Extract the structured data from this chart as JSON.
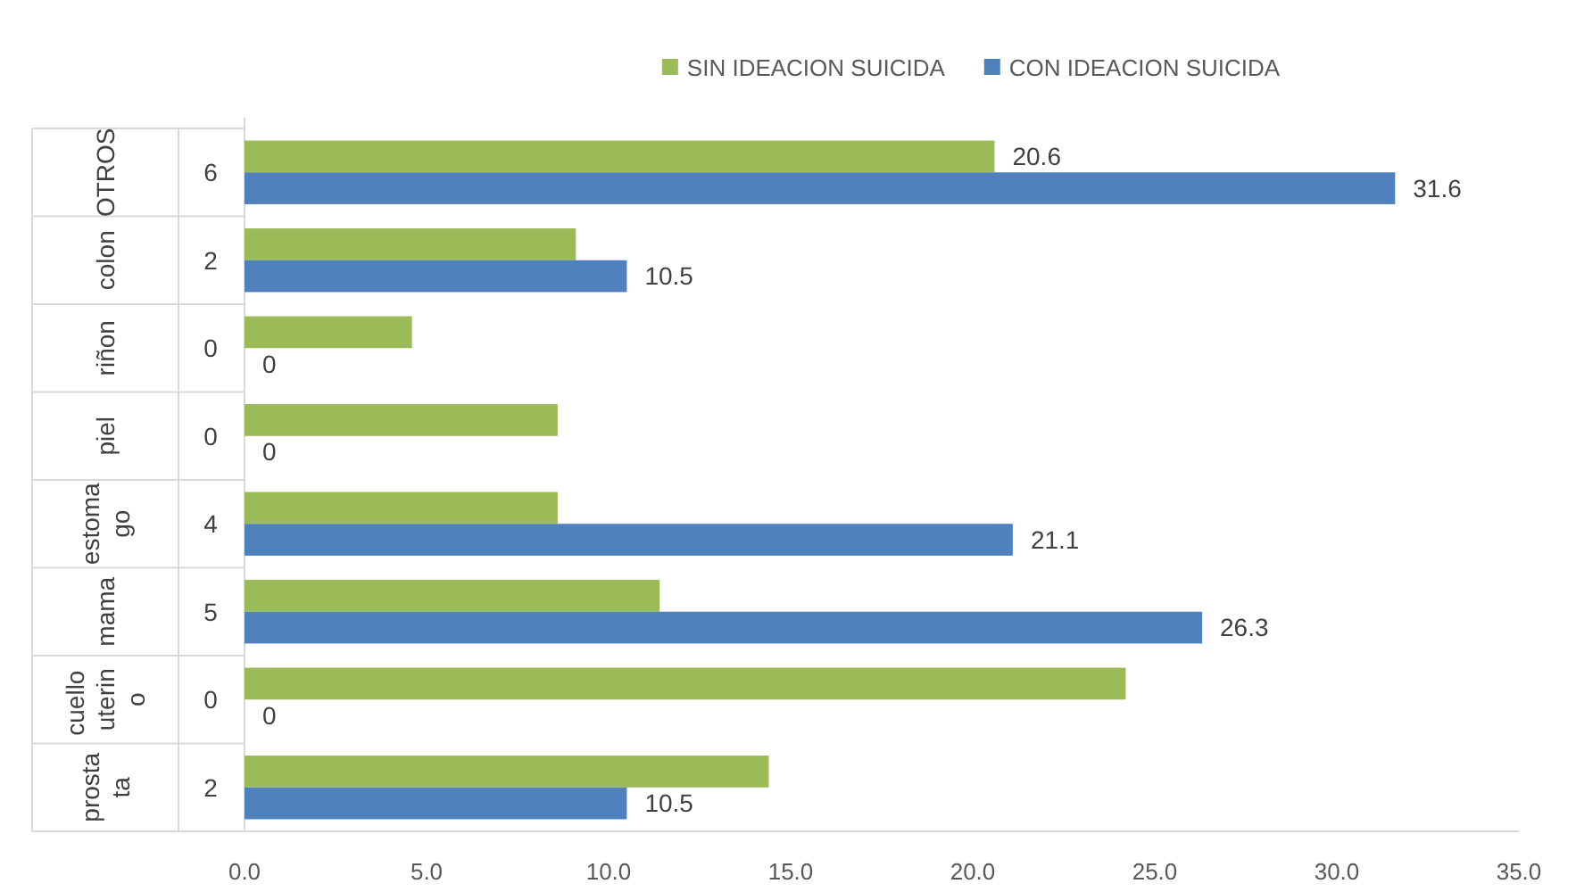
{
  "chart_data": {
    "type": "bar",
    "orientation": "horizontal",
    "categories": [
      "OTROS",
      "colon",
      "riñon",
      "piel",
      "estomago",
      "mama",
      "cuello uterino",
      "prostata"
    ],
    "annotations": [
      "6",
      "2",
      "0",
      "0",
      "4",
      "5",
      "0",
      "2"
    ],
    "series": [
      {
        "name": "SIN IDEACION SUICIDA",
        "color": "#9bbb59",
        "values": [
          20.6,
          9.1,
          4.6,
          8.6,
          8.6,
          11.4,
          24.2,
          14.4
        ],
        "value_labels": [
          "20.6",
          null,
          null,
          null,
          null,
          null,
          null,
          null
        ]
      },
      {
        "name": "CON IDEACION SUICIDA",
        "color": "#4f81bd",
        "values": [
          31.6,
          10.5,
          0,
          0,
          21.1,
          26.3,
          0,
          10.5
        ],
        "value_labels": [
          "31.6",
          "10.5",
          "0",
          "0",
          "21.1",
          "26.3",
          "0",
          "10.5"
        ]
      }
    ],
    "xlim": [
      0,
      35
    ],
    "xticks": [
      {
        "value": 0,
        "label": "0.0"
      },
      {
        "value": 5,
        "label": "5.0"
      },
      {
        "value": 10,
        "label": "10.0"
      },
      {
        "value": 15,
        "label": "15.0"
      },
      {
        "value": 20,
        "label": "20.0"
      },
      {
        "value": 25,
        "label": "25.0"
      },
      {
        "value": 30,
        "label": "30.0"
      },
      {
        "value": 35,
        "label": "35.0"
      }
    ],
    "legend": "top"
  }
}
